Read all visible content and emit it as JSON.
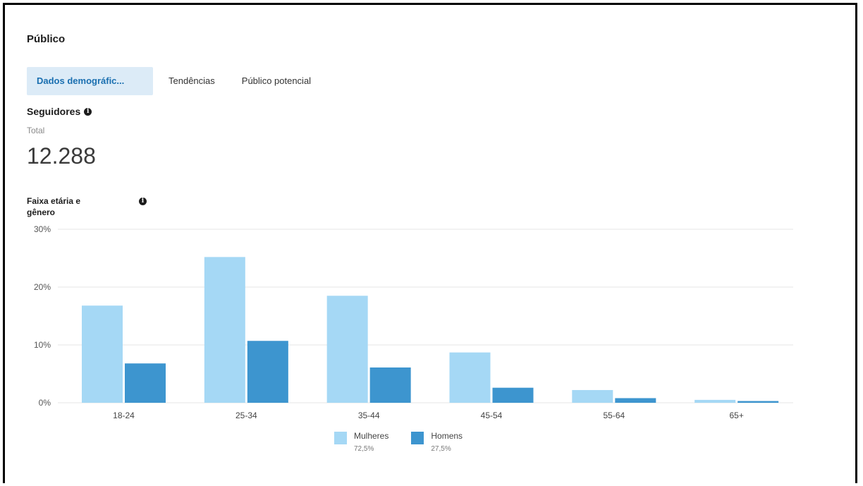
{
  "section_title": "Público",
  "tabs": [
    {
      "label": "Dados demográfic..."
    },
    {
      "label": "Tendências"
    },
    {
      "label": "Público potencial"
    }
  ],
  "followers": {
    "label": "Seguidores",
    "total_label": "Total",
    "total_value": "12.288"
  },
  "chart_title": "Faixa etária e gênero",
  "colors": {
    "women": "#a5d8f5",
    "men": "#3d95cf",
    "accent": "#1a6fb0"
  },
  "chart_data": {
    "type": "bar",
    "categories": [
      "18-24",
      "25-34",
      "35-44",
      "45-54",
      "55-64",
      "65+"
    ],
    "series": [
      {
        "name": "Mulheres",
        "values": [
          16.8,
          25.2,
          18.5,
          8.7,
          2.2,
          0.5
        ]
      },
      {
        "name": "Homens",
        "values": [
          6.8,
          10.7,
          6.1,
          2.6,
          0.8,
          0.3
        ]
      }
    ],
    "ylim": [
      0,
      30
    ],
    "yticks": [
      "0%",
      "10%",
      "20%",
      "30%"
    ],
    "ytick_values": [
      0,
      10,
      20,
      30
    ],
    "grid": true,
    "legend": "bottom-center"
  },
  "legend": [
    {
      "name": "Mulheres",
      "pct": "72,5%"
    },
    {
      "name": "Homens",
      "pct": "27,5%"
    }
  ]
}
